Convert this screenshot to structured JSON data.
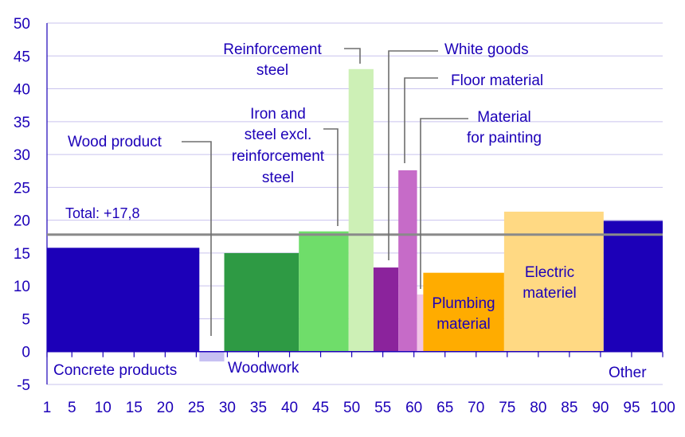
{
  "chart_data": {
    "type": "bar",
    "subtype": "variable-width",
    "x_axis": {
      "range": [
        1,
        100
      ],
      "ticks": [
        1,
        5,
        10,
        15,
        20,
        25,
        30,
        35,
        40,
        45,
        50,
        55,
        60,
        65,
        70,
        75,
        80,
        85,
        90,
        95,
        100
      ],
      "tick_labels": [
        "1",
        "5",
        "10",
        "15",
        "20",
        "25",
        "30",
        "35",
        "40",
        "45",
        "50",
        "55",
        "60",
        "65",
        "70",
        "75",
        "80",
        "85",
        "90",
        "95",
        "100"
      ]
    },
    "y_axis": {
      "range": [
        -5,
        50
      ],
      "ticks": [
        -5,
        0,
        5,
        10,
        15,
        20,
        25,
        30,
        35,
        40,
        45,
        50
      ],
      "tick_labels": [
        "-5",
        "0",
        "5",
        "10",
        "15",
        "20",
        "25",
        "30",
        "35",
        "40",
        "45",
        "50"
      ]
    },
    "grid": true,
    "bars": [
      {
        "name": "Concrete products",
        "x_start": 1,
        "x_end": 25.5,
        "value": 15.8,
        "color": "#1c00b8"
      },
      {
        "name": "Wood product",
        "x_start": 25.5,
        "x_end": 29.5,
        "value": -1.5,
        "color": "#c7c0f2"
      },
      {
        "name": "Woodwork",
        "x_start": 29.5,
        "x_end": 41.5,
        "value": 15.0,
        "color": "#2e9a44"
      },
      {
        "name": "Iron and steel excl. reinforcement steel",
        "x_start": 41.5,
        "x_end": 49.5,
        "value": 18.3,
        "color": "#6fdd6a"
      },
      {
        "name": "Reinforcement steel",
        "x_start": 49.5,
        "x_end": 53.5,
        "value": 43.0,
        "color": "#cdf0b6"
      },
      {
        "name": "White goods",
        "x_start": 53.5,
        "x_end": 57.5,
        "value": 12.8,
        "color": "#8b239c"
      },
      {
        "name": "Floor material",
        "x_start": 57.5,
        "x_end": 60.5,
        "value": 27.6,
        "color": "#c66bc8"
      },
      {
        "name": "Material for painting",
        "x_start": 60.5,
        "x_end": 61.5,
        "value": 8.7,
        "color": "#f2c4e6"
      },
      {
        "name": "Plumbing material",
        "x_start": 61.5,
        "x_end": 74.5,
        "value": 12.0,
        "color": "#ffac00"
      },
      {
        "name": "Electric materiel",
        "x_start": 74.5,
        "x_end": 90.5,
        "value": 21.3,
        "color": "#ffd983"
      },
      {
        "name": "Other",
        "x_start": 90.5,
        "x_end": 100,
        "value": 19.9,
        "color": "#1c00b8"
      }
    ],
    "total": {
      "label": "Total: +17,8",
      "value": 17.8,
      "color": "#8a8a8a"
    },
    "labels": {
      "concrete_products": "Concrete products",
      "wood_product": "Wood product",
      "woodwork": "Woodwork",
      "iron_steel_1": "Iron and",
      "iron_steel_2": "steel excl.",
      "iron_steel_3": "reinforcement",
      "iron_steel_4": "steel",
      "reinforcement_1": "Reinforcement",
      "reinforcement_2": "steel",
      "white_goods": "White goods",
      "floor_material": "Floor material",
      "painting_1": "Material",
      "painting_2": "for painting",
      "plumbing_1": "Plumbing",
      "plumbing_2": "material",
      "electric_1": "Electric",
      "electric_2": "materiel",
      "other": "Other"
    },
    "colors": {
      "text": "#1c00b8",
      "grid": "#c9c3ee",
      "axis": "#1c00b8",
      "leader": "#6e6e6e"
    }
  }
}
